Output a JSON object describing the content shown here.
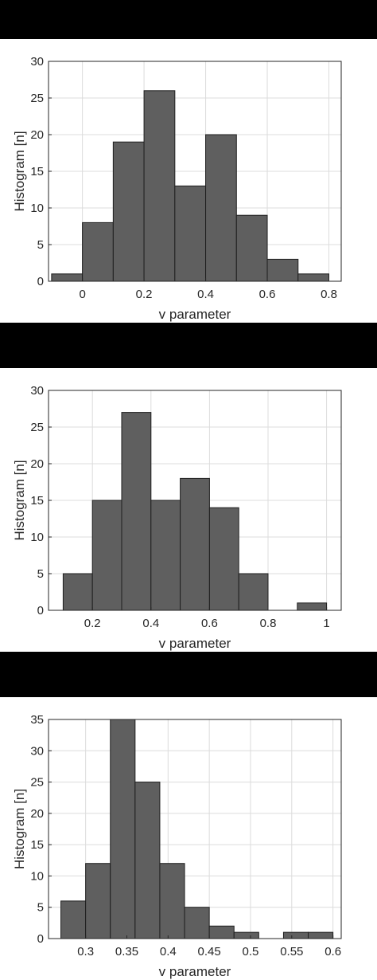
{
  "chart_data": [
    {
      "type": "bar",
      "title": "",
      "xlabel": "v parameter",
      "ylabel": "Histogram [n]",
      "xlim": [
        -0.11,
        0.84
      ],
      "ylim": [
        0,
        30
      ],
      "xticks": [
        "0",
        "0.2",
        "0.4",
        "0.6",
        "0.8"
      ],
      "yticks": [
        "0",
        "5",
        "10",
        "15",
        "20",
        "25",
        "30"
      ],
      "bin_edges": [
        -0.1,
        0.0,
        0.1,
        0.2,
        0.3,
        0.4,
        0.5,
        0.6,
        0.7,
        0.8
      ],
      "values": [
        1,
        8,
        19,
        26,
        13,
        20,
        9,
        3,
        1
      ],
      "grid": true
    },
    {
      "type": "bar",
      "title": "",
      "xlabel": "v parameter",
      "ylabel": "Histogram [n]",
      "xlim": [
        0.05,
        1.05
      ],
      "ylim": [
        0,
        30
      ],
      "xticks": [
        "0.2",
        "0.4",
        "0.6",
        "0.8",
        "1"
      ],
      "yticks": [
        "0",
        "5",
        "10",
        "15",
        "20",
        "25",
        "30"
      ],
      "bin_edges": [
        0.1,
        0.2,
        0.3,
        0.4,
        0.5,
        0.6,
        0.7,
        0.8,
        0.9,
        1.0
      ],
      "values": [
        5,
        15,
        27,
        15,
        18,
        14,
        5,
        0,
        1
      ],
      "grid": true
    },
    {
      "type": "bar",
      "title": "",
      "xlabel": "v parameter",
      "ylabel": "Histogram [n]",
      "xlim": [
        0.255,
        0.61
      ],
      "ylim": [
        0,
        35
      ],
      "xticks": [
        "0.3",
        "0.35",
        "0.4",
        "0.45",
        "0.5",
        "0.55",
        "0.6"
      ],
      "yticks": [
        "0",
        "5",
        "10",
        "15",
        "20",
        "25",
        "30",
        "35"
      ],
      "bin_edges": [
        0.27,
        0.3,
        0.33,
        0.36,
        0.39,
        0.42,
        0.45,
        0.48,
        0.51,
        0.54,
        0.57,
        0.6
      ],
      "values": [
        6,
        12,
        35,
        25,
        12,
        5,
        2,
        1,
        0,
        1,
        1
      ],
      "grid": true
    }
  ]
}
